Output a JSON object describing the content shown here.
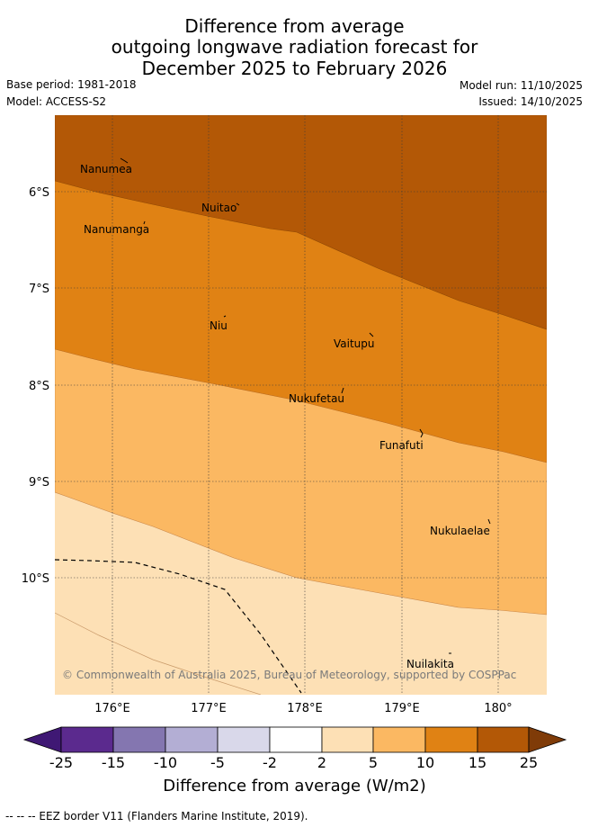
{
  "title": {
    "line1": "Difference from average",
    "line2": "outgoing longwave radiation forecast for",
    "line3": "December 2025 to February 2026"
  },
  "meta": {
    "base_period": "Base period: 1981-2018",
    "model": "Model: ACCESS-S2",
    "model_run": "Model run: 11/10/2025",
    "issued": "Issued: 14/10/2025"
  },
  "map": {
    "lon_labels": [
      "176°E",
      "177°E",
      "178°E",
      "179°E",
      "180°"
    ],
    "lat_labels": [
      "6°S",
      "7°S",
      "8°S",
      "9°S",
      "10°S"
    ],
    "islands": [
      {
        "name": "Nanumea"
      },
      {
        "name": "Nuitao"
      },
      {
        "name": "Nanumanga"
      },
      {
        "name": "Niu"
      },
      {
        "name": "Vaitupu"
      },
      {
        "name": "Nukufetau"
      },
      {
        "name": "Funafuti"
      },
      {
        "name": "Nukulaelae"
      },
      {
        "name": "Nuilakita"
      }
    ],
    "copyright": "© Commonwealth of Australia 2025, Bureau of Meteorology, supported by COSPPac"
  },
  "colorbar": {
    "ticks": [
      "-25",
      "-15",
      "-10",
      "-5",
      "-2",
      "2",
      "5",
      "10",
      "15",
      "25"
    ],
    "colors": [
      "#3f1874",
      "#5b2a8e",
      "#8476b0",
      "#b3aed4",
      "#d9d8ea",
      "#ffffff",
      "#fde0b5",
      "#fbb862",
      "#e08214",
      "#b35806",
      "#7f3b08"
    ],
    "label": "Difference from average (W/m2)"
  },
  "footnote": "-- -- -- EEZ border V11 (Flanders Marine Institute, 2019).",
  "colors": {
    "band_15_25": "#b35806",
    "band_10_15": "#e08214",
    "band_5_10": "#fbb862",
    "band_2_5": "#fde0b5"
  }
}
